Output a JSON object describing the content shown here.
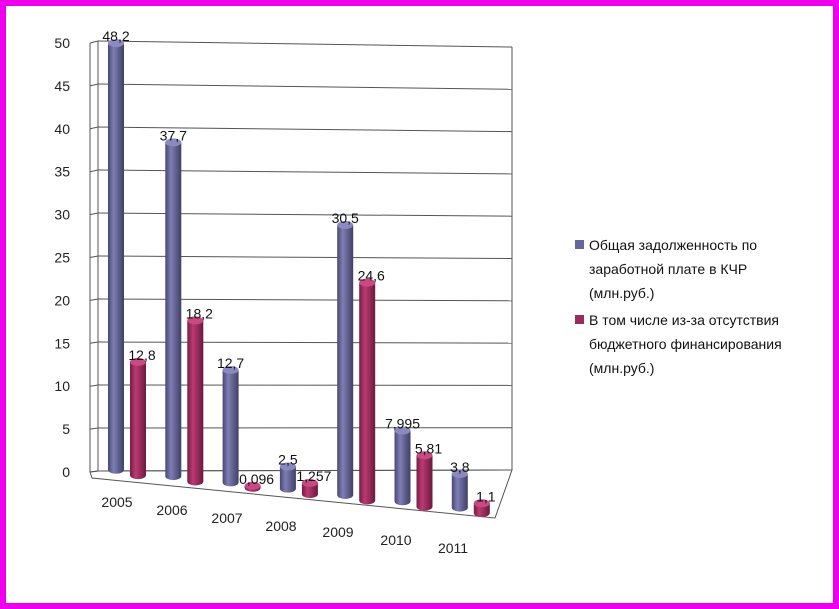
{
  "chart_data": {
    "type": "bar",
    "title": "",
    "xlabel": "",
    "ylabel": "",
    "ylim": [
      0,
      50
    ],
    "yticks": [
      0,
      5,
      10,
      15,
      20,
      25,
      30,
      35,
      40,
      45,
      50
    ],
    "categories": [
      "2005",
      "2006",
      "2007",
      "2008",
      "2009",
      "2010",
      "2011"
    ],
    "legend_position": "right",
    "grid": true,
    "series": [
      {
        "name_lines": [
          "Общая задолженность по",
          "заработной плате в КЧР",
          "(млн.руб.)"
        ],
        "color": "#66669a",
        "values": [
          48.2,
          37.7,
          12.7,
          2.5,
          30.5,
          7.995,
          3.8
        ],
        "labels": [
          "48,2",
          "37,7",
          "12,7",
          "2,5",
          "30,5",
          "7,995",
          "3,8"
        ]
      },
      {
        "name_lines": [
          "В том числе из-за отсутствия",
          "бюджетного финансирования",
          "(млн.руб.)"
        ],
        "color": "#9c2a5c",
        "values": [
          12.8,
          18.2,
          0.096,
          1.257,
          24.6,
          5.81,
          1.1
        ],
        "labels": [
          "12,8",
          "18,2",
          "0,096",
          "1,257",
          "24,6",
          "5,81",
          "1,1"
        ]
      }
    ]
  }
}
